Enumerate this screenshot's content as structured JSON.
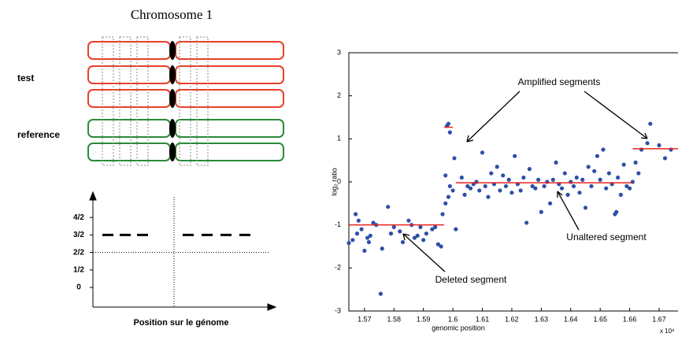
{
  "diagram": {
    "title": "Chromosome 1",
    "labels": [
      "test",
      "reference"
    ]
  },
  "chart_data": [
    {
      "type": "steps",
      "xlabel": "Position sur le génome",
      "ylim": [
        -0.56,
        2.7
      ],
      "yticks": [
        0,
        {
          "value": 0.5,
          "label": "1/2"
        },
        {
          "value": 1,
          "label": "2/2"
        },
        {
          "value": 1.5,
          "label": "3/2"
        },
        {
          "value": 2,
          "label": "4/2"
        }
      ],
      "baseline": 1,
      "values": [
        1.5,
        1.5,
        1.5,
        1.5,
        1.5,
        1.5,
        1.5
      ]
    },
    {
      "type": "scatter",
      "xlabel": "genomic position",
      "ylabel": "log₂ ratio",
      "x_multiplier": "x 10⁸",
      "xlim": [
        1.5647,
        1.6764
      ],
      "ylim": [
        -3,
        3
      ],
      "xticks": [
        1.57,
        1.58,
        1.59,
        1.6,
        1.61,
        1.62,
        1.63,
        1.64,
        1.65,
        1.66,
        1.67
      ],
      "yticks": [
        -3,
        -2,
        -1,
        0,
        1,
        2,
        3
      ],
      "color": "#2e4fa8",
      "segment_color": "#e8231e",
      "annotations": [
        "Amplified segments",
        "Unaltered segment",
        "Deleted segment"
      ],
      "segments": [
        {
          "x": [
            1.5647,
            1.597
          ],
          "y": -1
        },
        {
          "x": [
            1.597,
            1.6
          ],
          "y": 1.27
        },
        {
          "x": [
            1.601,
            1.661
          ],
          "y": -0.02
        },
        {
          "x": [
            1.661,
            1.6764
          ],
          "y": 0.77
        }
      ],
      "x": [
        1.5647,
        1.566,
        1.567,
        1.5675,
        1.568,
        1.569,
        1.57,
        1.571,
        1.5715,
        1.572,
        1.573,
        1.574,
        1.5755,
        1.576,
        1.578,
        1.579,
        1.58,
        1.582,
        1.583,
        1.585,
        1.586,
        1.587,
        1.588,
        1.589,
        1.59,
        1.591,
        1.593,
        1.594,
        1.595,
        1.596,
        1.5965,
        1.5975,
        1.598,
        1.5985,
        1.599,
        1.5975,
        1.5985,
        1.599,
        1.6,
        1.6005,
        1.601,
        1.603,
        1.604,
        1.605,
        1.606,
        1.607,
        1.608,
        1.609,
        1.61,
        1.611,
        1.612,
        1.613,
        1.614,
        1.615,
        1.616,
        1.617,
        1.618,
        1.619,
        1.62,
        1.621,
        1.622,
        1.623,
        1.624,
        1.625,
        1.626,
        1.627,
        1.628,
        1.629,
        1.63,
        1.631,
        1.632,
        1.633,
        1.634,
        1.635,
        1.636,
        1.637,
        1.638,
        1.639,
        1.64,
        1.641,
        1.642,
        1.643,
        1.644,
        1.645,
        1.646,
        1.647,
        1.648,
        1.649,
        1.65,
        1.651,
        1.652,
        1.653,
        1.654,
        1.655,
        1.6555,
        1.656,
        1.657,
        1.658,
        1.659,
        1.66,
        1.661,
        1.662,
        1.663,
        1.664,
        1.666,
        1.667,
        1.67,
        1.672,
        1.674
      ],
      "y": [
        -1.42,
        -1.35,
        -0.75,
        -1.2,
        -0.9,
        -1.1,
        -1.6,
        -1.3,
        -1.4,
        -1.25,
        -0.95,
        -1.0,
        -2.6,
        -1.55,
        -0.58,
        -1.2,
        -1.05,
        -1.15,
        -1.4,
        -0.9,
        -1.0,
        -1.3,
        -1.25,
        -1.05,
        -1.35,
        -1.2,
        -1.1,
        -1.05,
        -1.45,
        -1.5,
        -0.75,
        0.15,
        1.3,
        1.35,
        1.15,
        -0.5,
        -0.35,
        -0.1,
        -0.2,
        0.55,
        -1.1,
        0.1,
        -0.3,
        -0.1,
        -0.15,
        -0.05,
        0.0,
        -0.2,
        0.68,
        -0.1,
        -0.35,
        0.2,
        -0.05,
        0.35,
        -0.2,
        0.15,
        -0.1,
        0.05,
        -0.25,
        0.6,
        -0.05,
        -0.2,
        0.1,
        -0.95,
        0.3,
        -0.1,
        -0.15,
        0.05,
        -0.7,
        -0.1,
        0.0,
        -0.5,
        0.05,
        0.45,
        -0.05,
        -0.15,
        0.2,
        -0.3,
        0.0,
        -0.1,
        0.1,
        -0.25,
        0.05,
        -0.6,
        0.35,
        -0.1,
        0.25,
        0.6,
        0.05,
        0.75,
        -0.15,
        0.2,
        -0.05,
        -0.75,
        -0.7,
        0.1,
        -0.3,
        0.4,
        -0.1,
        -0.15,
        0.0,
        0.45,
        0.2,
        0.75,
        0.9,
        1.35,
        0.85,
        0.55,
        0.75
      ]
    }
  ]
}
